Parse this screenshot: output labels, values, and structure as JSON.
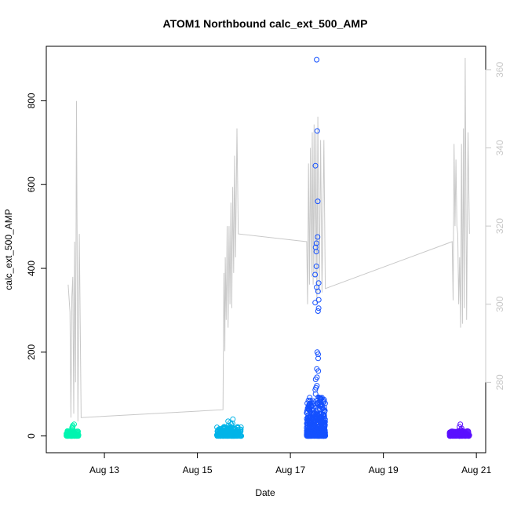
{
  "chart_data": {
    "type": "scatter",
    "title": "ATOM1 Northbound calc_ext_500_AMP",
    "xlabel": "Date",
    "ylabel": "calc_ext_500_AMP",
    "xlim_days": [
      11.75,
      21.2
    ],
    "x_ticks": [
      {
        "day": 13,
        "label": "Aug 13"
      },
      {
        "day": 15,
        "label": "Aug 15"
      },
      {
        "day": 17,
        "label": "Aug 17"
      },
      {
        "day": 19,
        "label": "Aug 19"
      },
      {
        "day": 21,
        "label": "Aug 21"
      }
    ],
    "ylim": [
      -40,
      930
    ],
    "y_ticks": [
      0,
      200,
      400,
      600,
      800
    ],
    "y2lim": [
      262,
      366
    ],
    "y2_ticks": [
      280,
      300,
      320,
      340,
      360
    ],
    "y2_color": "#c8c8c8",
    "grid": false,
    "scatter_clusters": [
      {
        "color": "#00f5b0",
        "day_start": 12.18,
        "day_end": 12.45,
        "count": 150,
        "ymax": 12,
        "outliers": [
          28,
          25,
          22,
          18,
          20,
          15
        ]
      },
      {
        "color": "#00b4e8",
        "day_start": 15.42,
        "day_end": 15.95,
        "count": 260,
        "ymax": 22,
        "outliers": [
          40,
          35,
          32,
          30,
          28,
          25
        ]
      },
      {
        "color": "#1450ff",
        "day_start": 17.35,
        "day_end": 17.75,
        "count": 520,
        "ymax": 95,
        "outliers": [
          898,
          728,
          645,
          560,
          475,
          460,
          450,
          440,
          405,
          385,
          365,
          355,
          345,
          325,
          318,
          305,
          298,
          200,
          195,
          185,
          160,
          155,
          140,
          135,
          120,
          115,
          110,
          100
        ]
      },
      {
        "color": "#5a0fff",
        "day_start": 20.42,
        "day_end": 20.85,
        "count": 230,
        "ymax": 12,
        "outliers": [
          28,
          22,
          18,
          15
        ]
      }
    ],
    "line_series": {
      "color": "#c8c8c8",
      "axis": "right",
      "points": [
        [
          12.22,
          305
        ],
        [
          12.26,
          298
        ],
        [
          12.28,
          271
        ],
        [
          12.3,
          302
        ],
        [
          12.32,
          307
        ],
        [
          12.34,
          272
        ],
        [
          12.36,
          316
        ],
        [
          12.38,
          280
        ],
        [
          12.4,
          352
        ],
        [
          12.43,
          270
        ],
        [
          12.46,
          318
        ],
        [
          12.5,
          271
        ],
        [
          15.55,
          273
        ],
        [
          15.57,
          308
        ],
        [
          15.59,
          288
        ],
        [
          15.6,
          312
        ],
        [
          15.62,
          296
        ],
        [
          15.64,
          320
        ],
        [
          15.66,
          294
        ],
        [
          15.68,
          320
        ],
        [
          15.7,
          300
        ],
        [
          15.72,
          326
        ],
        [
          15.74,
          299
        ],
        [
          15.76,
          330
        ],
        [
          15.78,
          308
        ],
        [
          15.8,
          338
        ],
        [
          15.82,
          312
        ],
        [
          15.85,
          345
        ],
        [
          15.88,
          318
        ],
        [
          17.35,
          316
        ],
        [
          17.37,
          300
        ],
        [
          17.39,
          336
        ],
        [
          17.41,
          305
        ],
        [
          17.43,
          340
        ],
        [
          17.45,
          307
        ],
        [
          17.47,
          344
        ],
        [
          17.49,
          305
        ],
        [
          17.51,
          346
        ],
        [
          17.53,
          307
        ],
        [
          17.55,
          344
        ],
        [
          17.57,
          300
        ],
        [
          17.59,
          348
        ],
        [
          17.62,
          303
        ],
        [
          17.65,
          342
        ],
        [
          17.68,
          303
        ],
        [
          17.72,
          342
        ],
        [
          17.75,
          304
        ],
        [
          20.48,
          316
        ],
        [
          20.5,
          301
        ],
        [
          20.52,
          341
        ],
        [
          20.54,
          320
        ],
        [
          20.56,
          337
        ],
        [
          20.58,
          320
        ],
        [
          20.6,
          318
        ],
        [
          20.62,
          300
        ],
        [
          20.64,
          312
        ],
        [
          20.66,
          294
        ],
        [
          20.68,
          341
        ],
        [
          20.7,
          295
        ],
        [
          20.72,
          345
        ],
        [
          20.74,
          299
        ],
        [
          20.76,
          363
        ],
        [
          20.79,
          296
        ],
        [
          20.82,
          344
        ],
        [
          20.85,
          318
        ]
      ]
    }
  }
}
